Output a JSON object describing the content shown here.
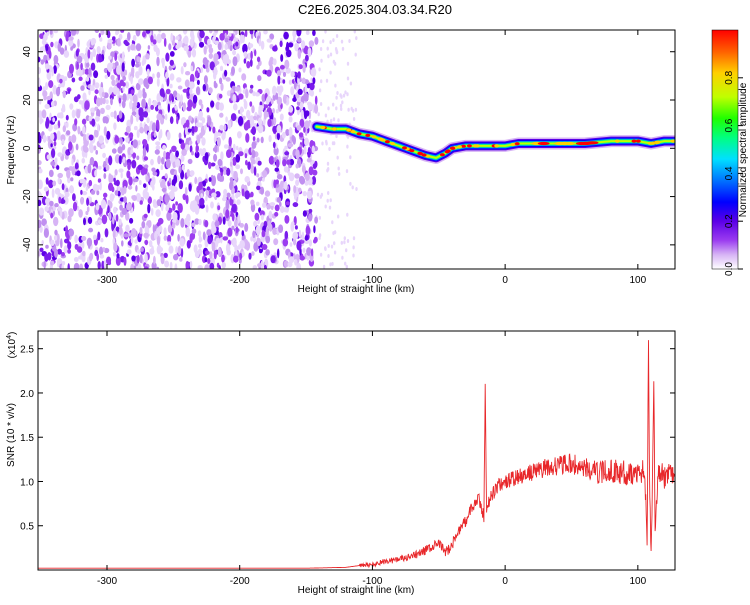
{
  "title": "C2E6.2025.304.03.34.R20",
  "chart_data": [
    {
      "type": "heatmap",
      "xlabel": "Height of straight line (km)",
      "ylabel": "Frequency (Hz)",
      "xlim": [
        -352,
        128
      ],
      "ylim": [
        -50,
        49
      ],
      "xticks": [
        -300,
        -200,
        -100,
        0,
        100
      ],
      "yticks": [
        40,
        20,
        0,
        -20,
        -40
      ],
      "noise_region_x": [
        -352,
        -142
      ],
      "trace": {
        "x": [
          -142,
          -130,
          -120,
          -110,
          -100,
          -90,
          -80,
          -70,
          -60,
          -52,
          -45,
          -40,
          -30,
          -20,
          -10,
          0,
          10,
          20,
          40,
          60,
          80,
          100,
          110,
          120,
          128
        ],
        "y": [
          9,
          8,
          8,
          6,
          5,
          3,
          1,
          -1,
          -3,
          -4,
          -2,
          0,
          1,
          1,
          1,
          1,
          2,
          2,
          2,
          2,
          3,
          3,
          2,
          3,
          3
        ]
      },
      "colorbar": {
        "label": "Normalized spectral amplitude",
        "range": [
          0,
          1
        ],
        "ticks": [
          0.0,
          0.2,
          0.4,
          0.6,
          0.8
        ],
        "colors": [
          "#ffffff",
          "#d7b4f5",
          "#9b3cf0",
          "#5b00e6",
          "#0000ff",
          "#0080ff",
          "#00e0ff",
          "#00ff80",
          "#20ff00",
          "#c0ff00",
          "#ffd000",
          "#ff6000",
          "#ff0000"
        ]
      }
    },
    {
      "type": "line",
      "xlabel": "Height of straight line (km)",
      "ylabel": "SNR (10 * v/v)",
      "multiplier": "(x10",
      "multiplier_exp": "4",
      "xlim": [
        -352,
        128
      ],
      "ylim": [
        0,
        2.7
      ],
      "xticks": [
        -300,
        -200,
        -100,
        0,
        100
      ],
      "yticks": [
        0.5,
        1.0,
        1.5,
        2.0,
        2.5
      ],
      "ytick_labels": [
        "0.5",
        "1.0",
        "1.5",
        "2.0",
        "2.5"
      ],
      "color": "#e8272a",
      "series": {
        "x": [
          -352,
          -150,
          -120,
          -110,
          -100,
          -90,
          -80,
          -70,
          -60,
          -50,
          -45,
          -40,
          -35,
          -30,
          -25,
          -20,
          -16,
          -15,
          -14,
          -10,
          -5,
          0,
          10,
          20,
          30,
          40,
          50,
          60,
          70,
          80,
          90,
          100,
          103,
          105,
          107,
          108,
          109,
          110,
          111,
          112,
          113,
          115,
          120,
          128
        ],
        "y": [
          0.02,
          0.02,
          0.03,
          0.05,
          0.06,
          0.1,
          0.12,
          0.15,
          0.22,
          0.3,
          0.2,
          0.28,
          0.45,
          0.55,
          0.7,
          0.8,
          0.6,
          2.1,
          0.7,
          0.85,
          0.95,
          1.0,
          1.05,
          1.1,
          1.15,
          1.18,
          1.2,
          1.15,
          1.1,
          1.12,
          1.1,
          1.08,
          1.12,
          1.15,
          0.3,
          2.65,
          0.8,
          0.25,
          1.0,
          2.2,
          0.4,
          1.1,
          1.05,
          1.07
        ]
      }
    }
  ]
}
